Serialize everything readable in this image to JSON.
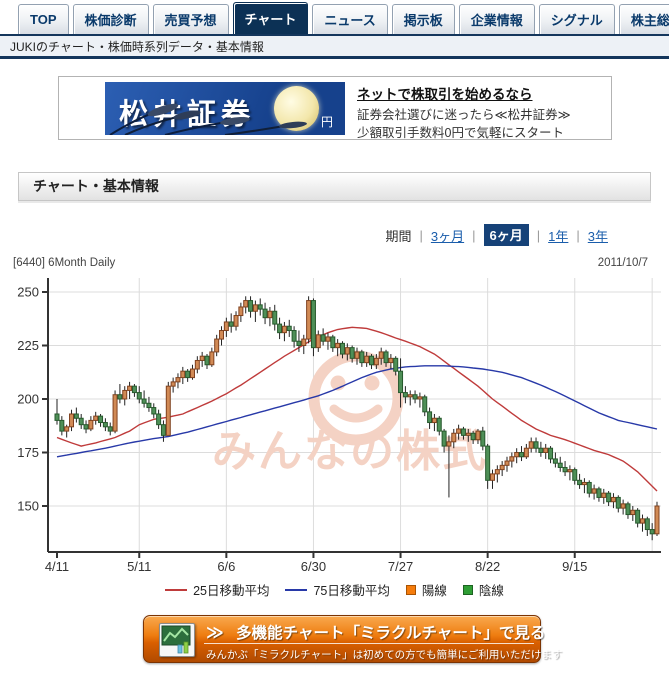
{
  "tabs": [
    {
      "label": "TOP",
      "active": false
    },
    {
      "label": "株価診断",
      "active": false
    },
    {
      "label": "売買予想",
      "active": false
    },
    {
      "label": "チャート",
      "active": true
    },
    {
      "label": "ニュース",
      "active": false
    },
    {
      "label": "掲示板",
      "active": false
    },
    {
      "label": "企業情報",
      "active": false
    },
    {
      "label": "シグナル",
      "active": false
    },
    {
      "label": "株主総会",
      "active": false
    }
  ],
  "breadcrumb": "JUKIのチャート・株価時系列データ・基本情報",
  "ad": {
    "brand": "松井証券",
    "yen": "円",
    "line1": "ネットで株取引を始めるなら",
    "line2": "証券会社選びに迷ったら≪松井証券≫",
    "line3": "少額取引手数料0円で気軽にスタート"
  },
  "section": {
    "title": "チャート・基本情報"
  },
  "period": {
    "label": "期間",
    "separator": "|",
    "options": [
      {
        "label": "3ヶ月",
        "selected": false
      },
      {
        "label": "6ヶ月",
        "selected": true
      },
      {
        "label": "1年",
        "selected": false
      },
      {
        "label": "3年",
        "selected": false
      }
    ]
  },
  "meta": {
    "code_label": "[6440] 6Month Daily",
    "date": "2011/10/7"
  },
  "watermark": {
    "text": "みんなの株式"
  },
  "legend": {
    "ma25": "25日移動平均",
    "ma75": "75日移動平均",
    "bull": "陽線",
    "bear": "陰線"
  },
  "cta": {
    "chevrons": "≫",
    "title": "多機能チャート「ミラクルチャート」で見る",
    "subtitle": "みんかぶ「ミラクルチャート」は初めての方でも簡単にご利用いただけます"
  },
  "colors": {
    "accent_navy": "#14365c",
    "link": "#1a5dab",
    "period_selected_bg": "#164278",
    "ma25": "#bf3b3b",
    "ma75": "#2839a8",
    "bull_fill": "#d18a55",
    "bull_border": "#80421f",
    "bear_fill": "#4e8f57",
    "bear_border": "#27592d",
    "legend_bull": "#f57c0c",
    "legend_bear": "#2f9e35",
    "watermark": "#f4d2c4",
    "grid": "#dcdcdc",
    "axis": "#333333"
  },
  "chart_data": {
    "type": "candlestick",
    "title": "[6440] 6Month Daily",
    "date": "2011/10/7",
    "ylim": [
      128,
      253
    ],
    "yticks": [
      250,
      225,
      200,
      175,
      150
    ],
    "grid": true,
    "legend_position": "bottom",
    "xticks": [
      {
        "label": "4/11",
        "index": 0
      },
      {
        "label": "5/11",
        "index": 17
      },
      {
        "label": "6/6",
        "index": 35
      },
      {
        "label": "6/30",
        "index": 53
      },
      {
        "label": "7/27",
        "index": 71
      },
      {
        "label": "8/22",
        "index": 89
      },
      {
        "label": "9/15",
        "index": 107
      },
      {
        "label": "",
        "index": 123
      }
    ],
    "candles": [
      [
        193,
        200,
        188,
        190
      ],
      [
        190,
        192,
        183,
        185
      ],
      [
        185,
        188,
        182,
        187
      ],
      [
        187,
        195,
        185,
        193
      ],
      [
        193,
        196,
        189,
        191
      ],
      [
        191,
        193,
        186,
        188
      ],
      [
        188,
        190,
        184,
        186
      ],
      [
        186,
        192,
        185,
        190
      ],
      [
        190,
        194,
        188,
        192
      ],
      [
        192,
        193,
        187,
        189
      ],
      [
        189,
        191,
        185,
        187
      ],
      [
        187,
        189,
        183,
        185
      ],
      [
        185,
        204,
        184,
        202
      ],
      [
        202,
        207,
        198,
        200
      ],
      [
        200,
        206,
        197,
        204
      ],
      [
        204,
        208,
        200,
        206
      ],
      [
        206,
        207,
        201,
        203
      ],
      [
        203,
        206,
        198,
        200
      ],
      [
        200,
        204,
        196,
        198
      ],
      [
        198,
        201,
        194,
        196
      ],
      [
        196,
        198,
        191,
        193
      ],
      [
        193,
        195,
        186,
        188
      ],
      [
        188,
        190,
        180,
        183
      ],
      [
        183,
        208,
        183,
        206
      ],
      [
        206,
        210,
        203,
        208
      ],
      [
        208,
        212,
        205,
        210
      ],
      [
        210,
        215,
        207,
        213
      ],
      [
        213,
        214,
        208,
        210
      ],
      [
        210,
        216,
        209,
        214
      ],
      [
        214,
        220,
        212,
        218
      ],
      [
        218,
        222,
        215,
        220
      ],
      [
        220,
        221,
        214,
        216
      ],
      [
        216,
        224,
        215,
        222
      ],
      [
        222,
        230,
        220,
        228
      ],
      [
        228,
        234,
        225,
        232
      ],
      [
        232,
        238,
        229,
        236
      ],
      [
        236,
        240,
        231,
        234
      ],
      [
        234,
        241,
        232,
        239
      ],
      [
        239,
        245,
        236,
        243
      ],
      [
        243,
        248,
        240,
        246
      ],
      [
        246,
        248,
        238,
        241
      ],
      [
        241,
        246,
        236,
        244
      ],
      [
        244,
        247,
        239,
        242
      ],
      [
        242,
        245,
        235,
        238
      ],
      [
        238,
        243,
        234,
        241
      ],
      [
        241,
        244,
        232,
        235
      ],
      [
        235,
        238,
        228,
        231
      ],
      [
        231,
        236,
        227,
        234
      ],
      [
        234,
        237,
        229,
        232
      ],
      [
        232,
        234,
        224,
        227
      ],
      [
        227,
        232,
        222,
        225
      ],
      [
        225,
        230,
        221,
        228
      ],
      [
        228,
        248,
        226,
        246
      ],
      [
        246,
        247,
        220,
        224
      ],
      [
        224,
        232,
        222,
        230
      ],
      [
        230,
        233,
        225,
        227
      ],
      [
        227,
        231,
        223,
        229
      ],
      [
        229,
        230,
        222,
        224
      ],
      [
        224,
        228,
        220,
        226
      ],
      [
        226,
        227,
        219,
        221
      ],
      [
        221,
        226,
        218,
        224
      ],
      [
        224,
        225,
        217,
        219
      ],
      [
        219,
        224,
        216,
        222
      ],
      [
        222,
        223,
        215,
        217
      ],
      [
        217,
        222,
        215,
        220
      ],
      [
        220,
        221,
        214,
        216
      ],
      [
        216,
        221,
        214,
        219
      ],
      [
        219,
        224,
        216,
        222
      ],
      [
        222,
        223,
        215,
        217
      ],
      [
        217,
        221,
        214,
        219
      ],
      [
        219,
        220,
        211,
        213
      ],
      [
        213,
        219,
        196,
        203
      ],
      [
        203,
        206,
        198,
        201
      ],
      [
        201,
        204,
        197,
        202
      ],
      [
        202,
        204,
        198,
        200
      ],
      [
        200,
        203,
        196,
        201
      ],
      [
        201,
        202,
        192,
        194
      ],
      [
        194,
        196,
        186,
        189
      ],
      [
        189,
        193,
        185,
        191
      ],
      [
        191,
        192,
        183,
        185
      ],
      [
        185,
        186,
        175,
        178
      ],
      [
        178,
        183,
        154,
        180
      ],
      [
        180,
        186,
        177,
        184
      ],
      [
        184,
        188,
        181,
        186
      ],
      [
        186,
        187,
        181,
        183
      ],
      [
        183,
        186,
        180,
        184
      ],
      [
        184,
        185,
        179,
        181
      ],
      [
        181,
        186,
        179,
        185
      ],
      [
        185,
        187,
        176,
        178
      ],
      [
        178,
        179,
        158,
        162
      ],
      [
        162,
        167,
        158,
        165
      ],
      [
        165,
        169,
        161,
        167
      ],
      [
        167,
        171,
        164,
        169
      ],
      [
        169,
        173,
        166,
        171
      ],
      [
        171,
        175,
        168,
        173
      ],
      [
        173,
        177,
        170,
        175
      ],
      [
        175,
        178,
        171,
        173
      ],
      [
        173,
        179,
        172,
        177
      ],
      [
        177,
        182,
        175,
        180
      ],
      [
        180,
        182,
        175,
        177
      ],
      [
        177,
        180,
        173,
        175
      ],
      [
        175,
        179,
        172,
        177
      ],
      [
        177,
        178,
        170,
        172
      ],
      [
        172,
        175,
        168,
        170
      ],
      [
        170,
        173,
        166,
        168
      ],
      [
        168,
        171,
        164,
        166
      ],
      [
        166,
        169,
        162,
        167
      ],
      [
        167,
        168,
        160,
        162
      ],
      [
        162,
        165,
        158,
        160
      ],
      [
        160,
        163,
        156,
        161
      ],
      [
        161,
        162,
        154,
        156
      ],
      [
        156,
        160,
        153,
        158
      ],
      [
        158,
        159,
        152,
        154
      ],
      [
        154,
        158,
        151,
        156
      ],
      [
        156,
        157,
        150,
        152
      ],
      [
        152,
        156,
        149,
        154
      ],
      [
        154,
        155,
        147,
        149
      ],
      [
        149,
        153,
        146,
        151
      ],
      [
        151,
        152,
        144,
        146
      ],
      [
        146,
        150,
        143,
        148
      ],
      [
        148,
        149,
        140,
        142
      ],
      [
        142,
        146,
        138,
        144
      ],
      [
        144,
        145,
        136,
        139
      ],
      [
        139,
        142,
        134,
        137
      ],
      [
        137,
        152,
        136,
        150
      ]
    ],
    "series": [
      {
        "name": "25日移動平均",
        "color": "#bf3b3b",
        "points": [
          [
            0,
            182
          ],
          [
            3,
            179.5
          ],
          [
            5,
            178
          ],
          [
            8,
            179.5
          ],
          [
            12,
            182
          ],
          [
            15,
            185
          ],
          [
            17,
            188
          ],
          [
            20,
            190.5
          ],
          [
            23,
            191.5
          ],
          [
            26,
            193
          ],
          [
            29,
            196
          ],
          [
            32,
            199
          ],
          [
            35,
            202.5
          ],
          [
            38,
            206.5
          ],
          [
            41,
            211
          ],
          [
            44,
            215.5
          ],
          [
            47,
            220
          ],
          [
            50,
            224
          ],
          [
            53,
            228
          ],
          [
            56,
            231
          ],
          [
            58,
            232.5
          ],
          [
            61,
            233.5
          ],
          [
            64,
            233
          ],
          [
            67,
            231
          ],
          [
            70,
            228.5
          ],
          [
            72,
            227
          ],
          [
            75,
            224.5
          ],
          [
            78,
            221
          ],
          [
            81,
            216
          ],
          [
            84,
            211
          ],
          [
            87,
            206
          ],
          [
            90,
            200
          ],
          [
            93,
            195
          ],
          [
            96,
            190
          ],
          [
            99,
            186
          ],
          [
            102,
            183
          ],
          [
            105,
            181
          ],
          [
            108,
            178.5
          ],
          [
            111,
            176
          ],
          [
            114,
            174
          ],
          [
            117,
            171
          ],
          [
            120,
            166
          ],
          [
            124,
            157
          ]
        ]
      },
      {
        "name": "75日移動平均",
        "color": "#2839a8",
        "points": [
          [
            0,
            173
          ],
          [
            5,
            175
          ],
          [
            10,
            177
          ],
          [
            15,
            179.5
          ],
          [
            20,
            181.5
          ],
          [
            23,
            182.5
          ],
          [
            27,
            184.5
          ],
          [
            31,
            187
          ],
          [
            35,
            189.5
          ],
          [
            39,
            192
          ],
          [
            43,
            194.5
          ],
          [
            47,
            197
          ],
          [
            51,
            199.5
          ],
          [
            54,
            201.5
          ],
          [
            57,
            204
          ],
          [
            60,
            207
          ],
          [
            63,
            210
          ],
          [
            66,
            212.5
          ],
          [
            69,
            214
          ],
          [
            72,
            215
          ],
          [
            76,
            215.5
          ],
          [
            80,
            215.5
          ],
          [
            84,
            215
          ],
          [
            88,
            214
          ],
          [
            92,
            212.5
          ],
          [
            96,
            210
          ],
          [
            100,
            206.5
          ],
          [
            104,
            202.5
          ],
          [
            108,
            198
          ],
          [
            112,
            193.5
          ],
          [
            116,
            190
          ],
          [
            120,
            188
          ],
          [
            124,
            186
          ]
        ]
      }
    ]
  }
}
